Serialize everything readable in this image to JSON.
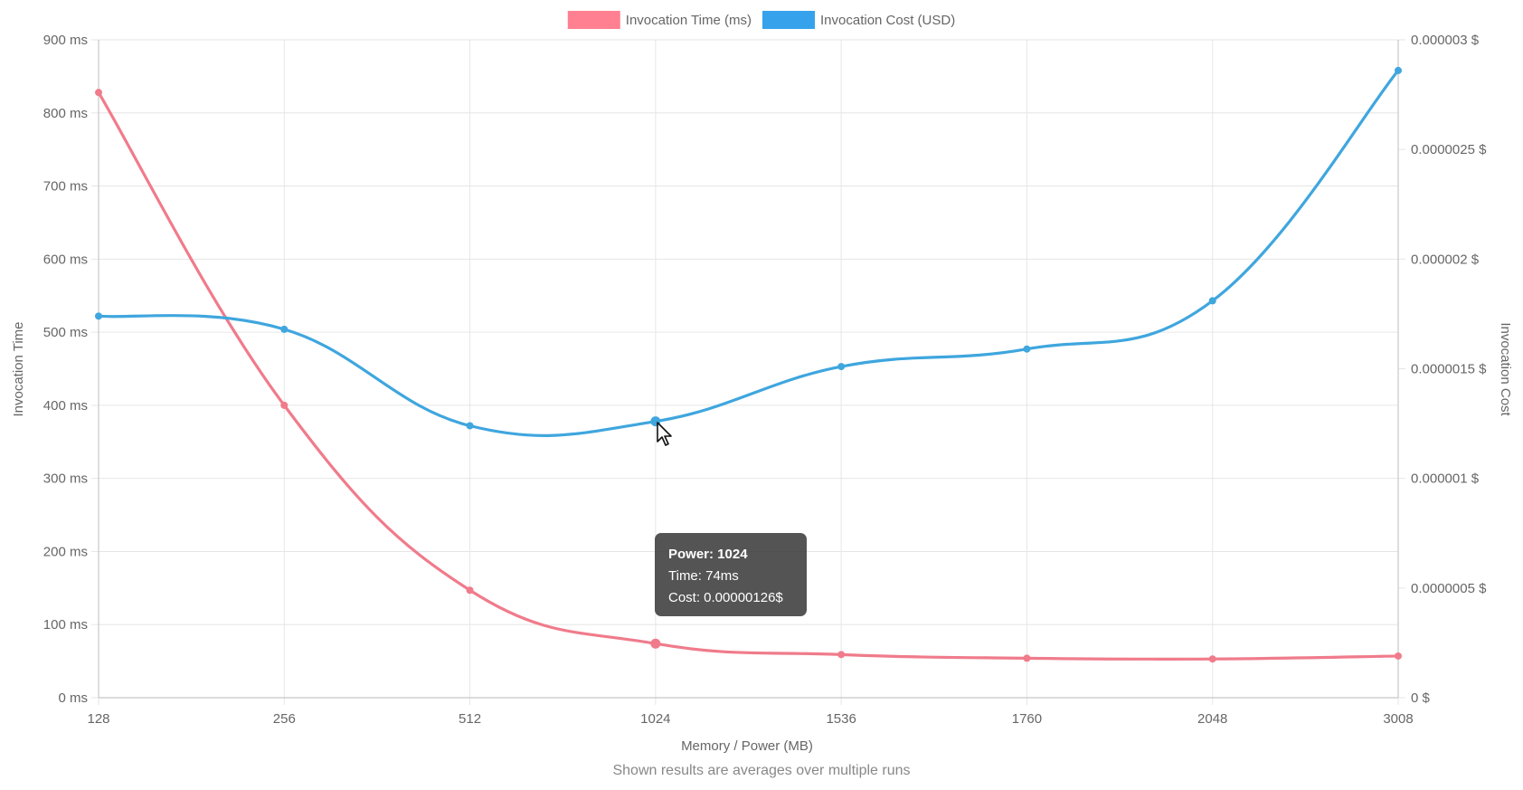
{
  "chart_data": {
    "type": "line",
    "categories": [
      "128",
      "256",
      "512",
      "1024",
      "1536",
      "1760",
      "2048",
      "3008"
    ],
    "xlabel": "Memory / Power (MB)",
    "series": [
      {
        "name": "Invocation Time (ms)",
        "axis": "left",
        "color": "#f07b8b",
        "values": [
          828,
          400,
          147,
          74,
          59,
          54,
          53,
          57
        ]
      },
      {
        "name": "Invocation Cost (USD)",
        "axis": "right",
        "color": "#3fa6de",
        "values": [
          1.74e-06,
          1.68e-06,
          1.24e-06,
          1.26e-06,
          1.51e-06,
          1.59e-06,
          1.81e-06,
          2.86e-06
        ]
      }
    ],
    "y_left": {
      "label": "Invocation Time",
      "ylim": [
        0,
        900
      ],
      "ticks": [
        "900 ms",
        "800 ms",
        "700 ms",
        "600 ms",
        "500 ms",
        "400 ms",
        "300 ms",
        "200 ms",
        "100 ms",
        "0 ms"
      ]
    },
    "y_right": {
      "label": "Invocation Cost",
      "ylim": [
        0,
        3e-06
      ],
      "ticks": [
        "0.000003 $",
        "0.0000025 $",
        "0.000002 $",
        "0.0000015 $",
        "0.000001 $",
        "0.0000005 $",
        "0 $"
      ]
    },
    "legend_position": "top-center",
    "grid": true
  },
  "legend": [
    {
      "label": "Invocation Time (ms)",
      "color": "#ff8090"
    },
    {
      "label": "Invocation Cost (USD)",
      "color": "#36a2eb"
    }
  ],
  "tooltip": {
    "title": "Power: 1024",
    "time": "Time: 74ms",
    "cost": "Cost: 0.00000126$"
  },
  "footnote": "Shown results are averages over multiple runs"
}
